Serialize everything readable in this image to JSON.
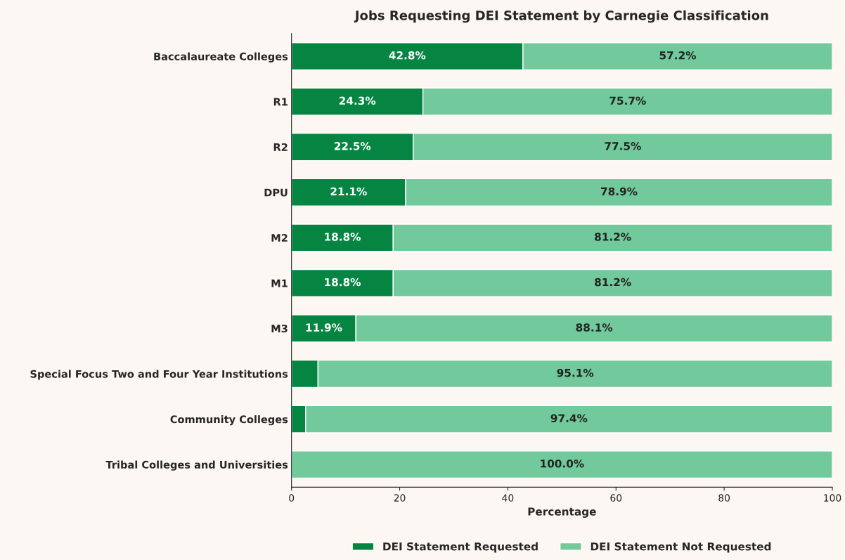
{
  "chart_data": {
    "type": "bar",
    "orientation": "horizontal",
    "stacked": true,
    "title": "Jobs Requesting DEI Statement by Carnegie Classification",
    "xlabel": "Percentage",
    "categories": [
      "Baccalaureate Colleges",
      "R1",
      "R2",
      "DPU",
      "M2",
      "M1",
      "M3",
      "Special Focus Two and Four Year Institutions",
      "Community Colleges",
      "Tribal Colleges and Universities"
    ],
    "series": [
      {
        "name": "DEI Statement Requested",
        "color": "#058541",
        "values": [
          42.8,
          24.3,
          22.5,
          21.1,
          18.8,
          18.8,
          11.9,
          4.9,
          2.6,
          0
        ],
        "value_labels": [
          "42.8%",
          "24.3%",
          "22.5%",
          "21.1%",
          "18.8%",
          "18.8%",
          "11.9%",
          null,
          null,
          null
        ]
      },
      {
        "name": "DEI Statement Not Requested",
        "color": "#72c99b",
        "values": [
          57.2,
          75.7,
          77.5,
          78.9,
          81.2,
          81.2,
          88.1,
          95.1,
          97.4,
          100.0
        ],
        "value_labels": [
          "57.2%",
          "75.7%",
          "77.5%",
          "78.9%",
          "81.2%",
          "81.2%",
          "88.1%",
          "95.1%",
          "97.4%",
          "100.0%"
        ]
      }
    ],
    "xlim": [
      0,
      100
    ],
    "xticks": [
      0,
      20,
      40,
      60,
      80,
      100
    ],
    "grid": false,
    "legend": "bottom"
  }
}
